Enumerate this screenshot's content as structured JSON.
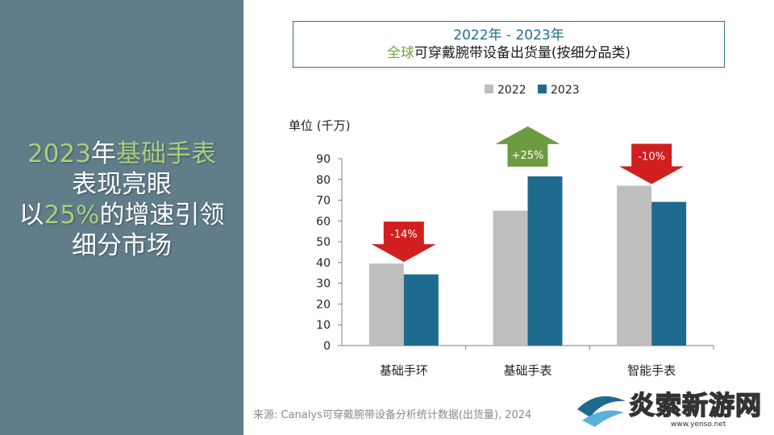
{
  "headline": {
    "parts": [
      {
        "text": "2023",
        "highlight": true
      },
      {
        "text": "年",
        "highlight": false
      },
      {
        "text": "基础手表",
        "highlight": true
      },
      {
        "text": "表现亮眼",
        "highlight": false,
        "break_before": true
      },
      {
        "text": "以",
        "highlight": false,
        "break_before": true
      },
      {
        "text": "25%",
        "highlight": true
      },
      {
        "text": "的增速引领",
        "highlight": false
      },
      {
        "text": "细分市场",
        "highlight": false,
        "break_before": true
      }
    ]
  },
  "title": {
    "line1": "2022年 - 2023年",
    "line2_highlight": "全球",
    "line2_rest": "可穿戴腕带设备出货量(按细分品类)"
  },
  "source": "来源: Canalys可穿戴腕带设备分析统计数据(出货量), 2024",
  "watermark": {
    "text": "炎索新游网",
    "url": "www.yenso.net"
  },
  "colors": {
    "panel": "#617d8a",
    "highlight_green": "#a7cf7d",
    "series_2022": "#bfbfbf",
    "series_2023": "#1f6b8f",
    "arrow_down": "#d11f1f",
    "arrow_up": "#6e9a40"
  },
  "chart_data": {
    "type": "bar",
    "unit_label": "单位 (千万)",
    "categories": [
      "基础手环",
      "基础手表",
      "智能手表"
    ],
    "series": [
      {
        "name": "2022",
        "values": [
          39.5,
          65,
          77
        ],
        "color": "#bfbfbf"
      },
      {
        "name": "2023",
        "values": [
          34.3,
          81.5,
          69.2
        ],
        "color": "#1f6b8f"
      }
    ],
    "ylim": [
      0,
      90
    ],
    "yticks": [
      0,
      10,
      20,
      30,
      40,
      50,
      60,
      70,
      80,
      90
    ],
    "legend_position": "top",
    "annotations": [
      {
        "category": "基础手环",
        "text": "-14%",
        "direction": "down"
      },
      {
        "category": "基础手表",
        "text": "+25%",
        "direction": "up"
      },
      {
        "category": "智能手表",
        "text": "-10%",
        "direction": "down"
      }
    ]
  }
}
